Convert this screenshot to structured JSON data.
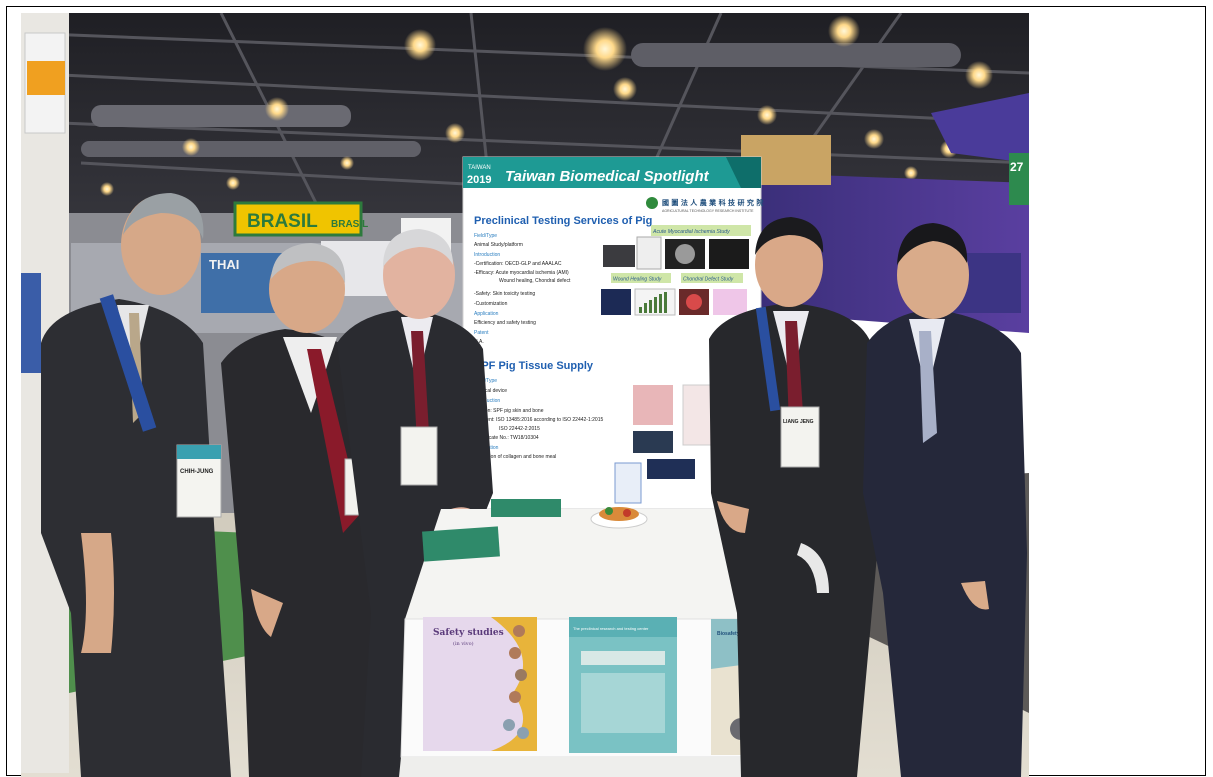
{
  "photo": {
    "signs": {
      "brasil_left": "BRASIL",
      "brasil_right": "BRASIL",
      "thai": "THAI",
      "right_number": "27"
    },
    "poster": {
      "year_top": "TAIWAN",
      "year_bottom": "2019",
      "banner_title": "Taiwan Biomedical Spotlight",
      "org_name": "國 圖 法 人 農 業 科 技 研 究 院",
      "org_sub": "AGRICULTURAL TECHNOLOGY RESEARCH INSTITUTE",
      "section1_title": "Preclinical Testing Services of Pig",
      "section1_lines": [
        "Field/Type",
        "Animal Study/platform",
        "Introduction",
        "-Certification: OECD-GLP and AAALAC",
        "-Efficacy: Acute myocardial ischemia (AMI)",
        "Wound healing, Chondral defect",
        "-Safety: Skin toxicity testing",
        "-Customization",
        "Application",
        "Efficiency and safety testing",
        "Patent",
        "N.A."
      ],
      "ami_label": "Acute Myocardial Ischemia Study",
      "wound_label": "Wound Healing Study",
      "chondral_label": "Chondral Defect Study",
      "section2_title": "SPF Pig Tissue Supply",
      "section2_lines": [
        "Field/Type",
        "Medical device",
        "Introduction",
        "-Option: SPF pig skin and bone",
        "-Content: ISO 13485:2016 according to ISO 22442-1:2015",
        "ISO 22442-2:2015",
        "-Certificate No.: TW18/10304",
        "Application",
        "Extraction of collagen and bone meal"
      ]
    },
    "badges": {
      "left_name": "CHIH-JUNG",
      "right_name": "LIANG JENG"
    },
    "flyers": {
      "left_title": "Safety studies",
      "left_sub": "(in vivo)",
      "center_title": "The preclinical research and testing center",
      "right_title": "Biosafety Test and Virus Validation"
    },
    "colors": {
      "ceiling": "#2a2a30",
      "floor": "#d9d4c8",
      "carpet": "#4a8a4a",
      "banner_teal": "#1e9a94",
      "poster_title_blue": "#1f5fb0",
      "suit": "#2b2c30",
      "table": "#f4f4f2"
    }
  }
}
